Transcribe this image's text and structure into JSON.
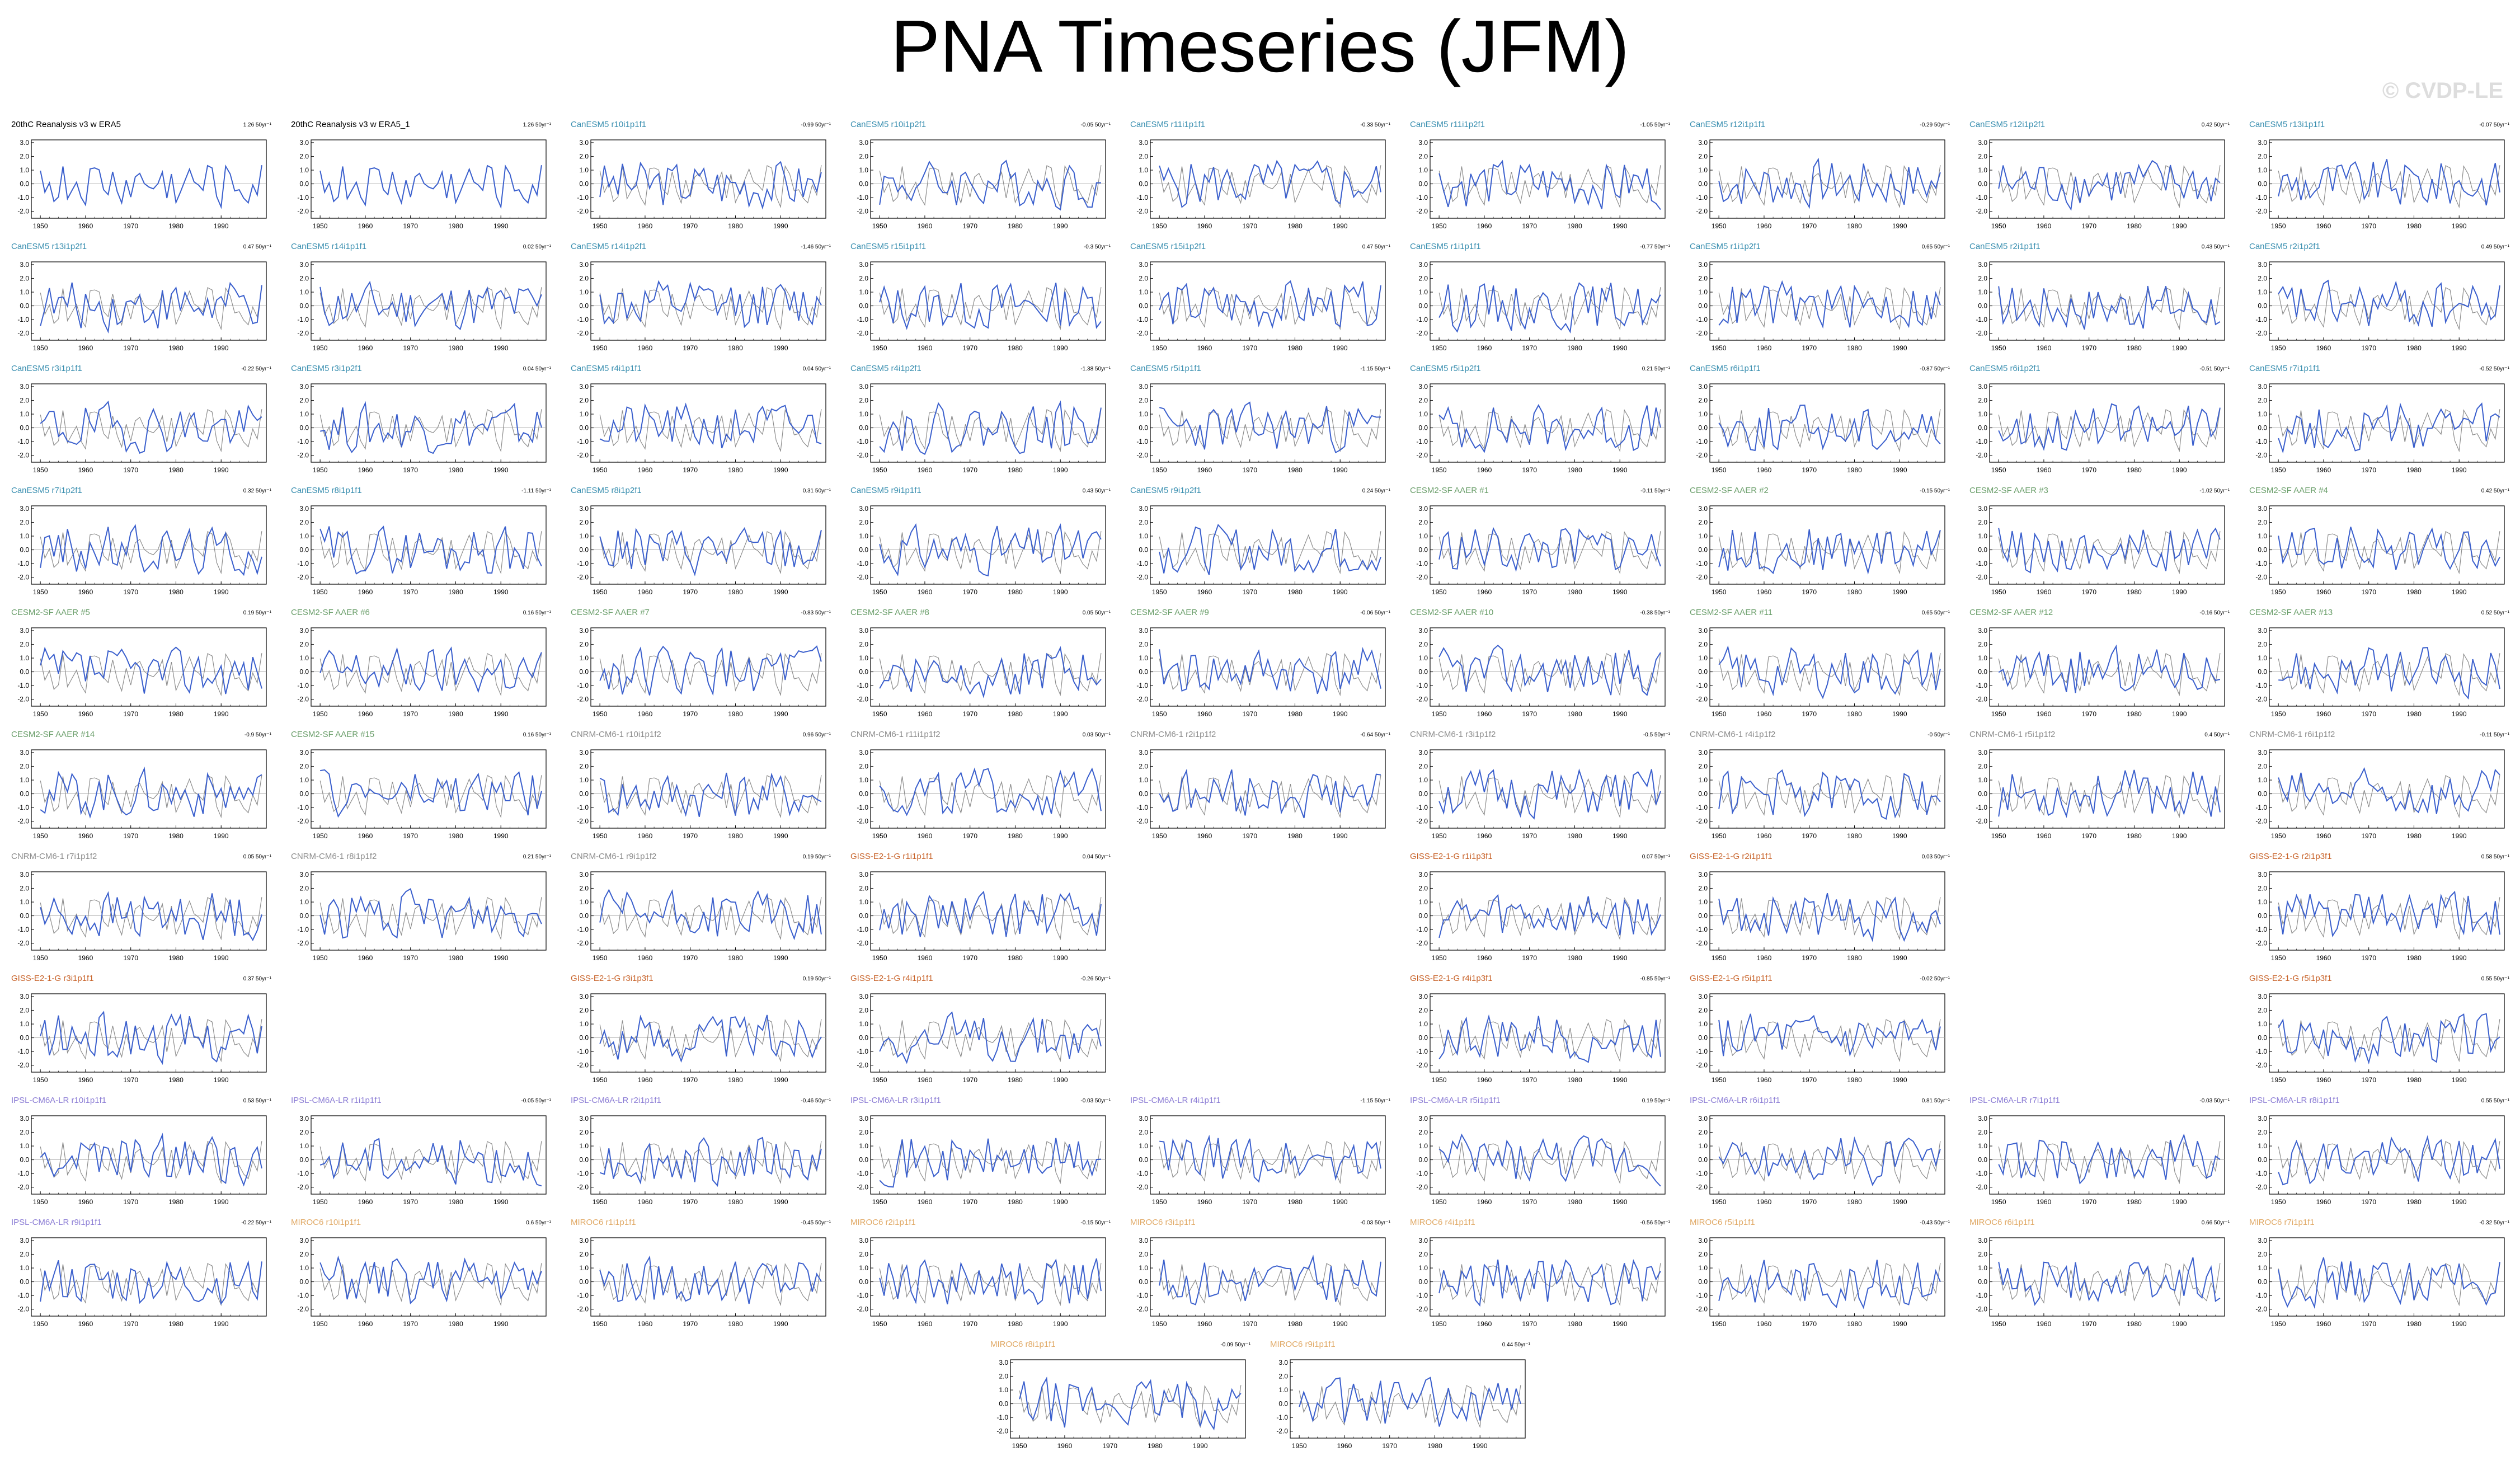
{
  "page": {
    "title": "PNA Timeseries (JFM)",
    "watermark": "© CVDP-LE"
  },
  "colors": {
    "obs": "#000000",
    "CanESM5": "#3a8fb0",
    "CESM2-SF AAER": "#6a9e6a",
    "CNRM-CM6-1": "#8c8c8c",
    "GISS-E2-1-G": "#c8632a",
    "IPSL-CM6A-LR": "#8a7bd4",
    "MIROC6": "#e0a864",
    "model_line": "#3a5fcd",
    "obs_line": "#8c8c8c"
  },
  "chart_data": {
    "type": "line",
    "ylim": [
      -2.5,
      3.2
    ],
    "xlim": [
      1948,
      2000
    ],
    "yticks": [
      "3.0",
      "2.0",
      "1.0",
      "0.0",
      "-1.0",
      "-2.0"
    ],
    "xticks": [
      "1950",
      "1960",
      "1970",
      "1980",
      "1990"
    ],
    "panels": [
      {
        "row": 0,
        "col": 0,
        "title": "20thC Reanalysis v3 w ERA5",
        "trend": "1.26 50yr⁻¹",
        "group": "obs",
        "seed": 1
      },
      {
        "row": 0,
        "col": 1,
        "title": "20thC Reanalysis v3 w ERA5_1",
        "trend": "1.26 50yr⁻¹",
        "group": "obs",
        "seed": 2
      },
      {
        "row": 0,
        "col": 2,
        "title": "CanESM5 r10i1p1f1",
        "trend": "-0.99 50yr⁻¹",
        "group": "CanESM5",
        "seed": 3
      },
      {
        "row": 0,
        "col": 3,
        "title": "CanESM5 r10i1p2f1",
        "trend": "-0.05 50yr⁻¹",
        "group": "CanESM5",
        "seed": 4
      },
      {
        "row": 0,
        "col": 4,
        "title": "CanESM5 r11i1p1f1",
        "trend": "-0.33 50yr⁻¹",
        "group": "CanESM5",
        "seed": 5
      },
      {
        "row": 0,
        "col": 5,
        "title": "CanESM5 r11i1p2f1",
        "trend": "-1.05 50yr⁻¹",
        "group": "CanESM5",
        "seed": 6
      },
      {
        "row": 0,
        "col": 6,
        "title": "CanESM5 r12i1p1f1",
        "trend": "-0.29 50yr⁻¹",
        "group": "CanESM5",
        "seed": 7
      },
      {
        "row": 0,
        "col": 7,
        "title": "CanESM5 r12i1p2f1",
        "trend": "0.42 50yr⁻¹",
        "group": "CanESM5",
        "seed": 8
      },
      {
        "row": 0,
        "col": 8,
        "title": "CanESM5 r13i1p1f1",
        "trend": "-0.07 50yr⁻¹",
        "group": "CanESM5",
        "seed": 9
      },
      {
        "row": 1,
        "col": 0,
        "title": "CanESM5 r13i1p2f1",
        "trend": "0.47 50yr⁻¹",
        "group": "CanESM5",
        "seed": 10
      },
      {
        "row": 1,
        "col": 1,
        "title": "CanESM5 r14i1p1f1",
        "trend": "0.02 50yr⁻¹",
        "group": "CanESM5",
        "seed": 11
      },
      {
        "row": 1,
        "col": 2,
        "title": "CanESM5 r14i1p2f1",
        "trend": "-1.46 50yr⁻¹",
        "group": "CanESM5",
        "seed": 12
      },
      {
        "row": 1,
        "col": 3,
        "title": "CanESM5 r15i1p1f1",
        "trend": "-0.3 50yr⁻¹",
        "group": "CanESM5",
        "seed": 13
      },
      {
        "row": 1,
        "col": 4,
        "title": "CanESM5 r15i1p2f1",
        "trend": "0.47 50yr⁻¹",
        "group": "CanESM5",
        "seed": 14
      },
      {
        "row": 1,
        "col": 5,
        "title": "CanESM5 r1i1p1f1",
        "trend": "-0.77 50yr⁻¹",
        "group": "CanESM5",
        "seed": 15
      },
      {
        "row": 1,
        "col": 6,
        "title": "CanESM5 r1i1p2f1",
        "trend": "0.65 50yr⁻¹",
        "group": "CanESM5",
        "seed": 16
      },
      {
        "row": 1,
        "col": 7,
        "title": "CanESM5 r2i1p1f1",
        "trend": "0.43 50yr⁻¹",
        "group": "CanESM5",
        "seed": 17
      },
      {
        "row": 1,
        "col": 8,
        "title": "CanESM5 r2i1p2f1",
        "trend": "0.49 50yr⁻¹",
        "group": "CanESM5",
        "seed": 18
      },
      {
        "row": 2,
        "col": 0,
        "title": "CanESM5 r3i1p1f1",
        "trend": "-0.22 50yr⁻¹",
        "group": "CanESM5",
        "seed": 19
      },
      {
        "row": 2,
        "col": 1,
        "title": "CanESM5 r3i1p2f1",
        "trend": "0.04 50yr⁻¹",
        "group": "CanESM5",
        "seed": 20
      },
      {
        "row": 2,
        "col": 2,
        "title": "CanESM5 r4i1p1f1",
        "trend": "0.04 50yr⁻¹",
        "group": "CanESM5",
        "seed": 21
      },
      {
        "row": 2,
        "col": 3,
        "title": "CanESM5 r4i1p2f1",
        "trend": "-1.38 50yr⁻¹",
        "group": "CanESM5",
        "seed": 22
      },
      {
        "row": 2,
        "col": 4,
        "title": "CanESM5 r5i1p1f1",
        "trend": "-1.15 50yr⁻¹",
        "group": "CanESM5",
        "seed": 23
      },
      {
        "row": 2,
        "col": 5,
        "title": "CanESM5 r5i1p2f1",
        "trend": "0.21 50yr⁻¹",
        "group": "CanESM5",
        "seed": 24
      },
      {
        "row": 2,
        "col": 6,
        "title": "CanESM5 r6i1p1f1",
        "trend": "-0.87 50yr⁻¹",
        "group": "CanESM5",
        "seed": 25
      },
      {
        "row": 2,
        "col": 7,
        "title": "CanESM5 r6i1p2f1",
        "trend": "-0.51 50yr⁻¹",
        "group": "CanESM5",
        "seed": 26
      },
      {
        "row": 2,
        "col": 8,
        "title": "CanESM5 r7i1p1f1",
        "trend": "-0.52 50yr⁻¹",
        "group": "CanESM5",
        "seed": 27
      },
      {
        "row": 3,
        "col": 0,
        "title": "CanESM5 r7i1p2f1",
        "trend": "0.32 50yr⁻¹",
        "group": "CanESM5",
        "seed": 28
      },
      {
        "row": 3,
        "col": 1,
        "title": "CanESM5 r8i1p1f1",
        "trend": "-1.11 50yr⁻¹",
        "group": "CanESM5",
        "seed": 29
      },
      {
        "row": 3,
        "col": 2,
        "title": "CanESM5 r8i1p2f1",
        "trend": "0.31 50yr⁻¹",
        "group": "CanESM5",
        "seed": 30
      },
      {
        "row": 3,
        "col": 3,
        "title": "CanESM5 r9i1p1f1",
        "trend": "0.43 50yr⁻¹",
        "group": "CanESM5",
        "seed": 31
      },
      {
        "row": 3,
        "col": 4,
        "title": "CanESM5 r9i1p2f1",
        "trend": "0.24 50yr⁻¹",
        "group": "CanESM5",
        "seed": 32
      },
      {
        "row": 3,
        "col": 5,
        "title": "CESM2-SF AAER #1",
        "trend": "-0.11 50yr⁻¹",
        "group": "CESM2-SF AAER",
        "seed": 33
      },
      {
        "row": 3,
        "col": 6,
        "title": "CESM2-SF AAER #2",
        "trend": "-0.15 50yr⁻¹",
        "group": "CESM2-SF AAER",
        "seed": 34
      },
      {
        "row": 3,
        "col": 7,
        "title": "CESM2-SF AAER #3",
        "trend": "-1.02 50yr⁻¹",
        "group": "CESM2-SF AAER",
        "seed": 35
      },
      {
        "row": 3,
        "col": 8,
        "title": "CESM2-SF AAER #4",
        "trend": "0.42 50yr⁻¹",
        "group": "CESM2-SF AAER",
        "seed": 36
      },
      {
        "row": 4,
        "col": 0,
        "title": "CESM2-SF AAER #5",
        "trend": "0.19 50yr⁻¹",
        "group": "CESM2-SF AAER",
        "seed": 37
      },
      {
        "row": 4,
        "col": 1,
        "title": "CESM2-SF AAER #6",
        "trend": "0.16 50yr⁻¹",
        "group": "CESM2-SF AAER",
        "seed": 38
      },
      {
        "row": 4,
        "col": 2,
        "title": "CESM2-SF AAER #7",
        "trend": "-0.83 50yr⁻¹",
        "group": "CESM2-SF AAER",
        "seed": 39
      },
      {
        "row": 4,
        "col": 3,
        "title": "CESM2-SF AAER #8",
        "trend": "0.05 50yr⁻¹",
        "group": "CESM2-SF AAER",
        "seed": 40
      },
      {
        "row": 4,
        "col": 4,
        "title": "CESM2-SF AAER #9",
        "trend": "-0.06 50yr⁻¹",
        "group": "CESM2-SF AAER",
        "seed": 41
      },
      {
        "row": 4,
        "col": 5,
        "title": "CESM2-SF AAER #10",
        "trend": "-0.38 50yr⁻¹",
        "group": "CESM2-SF AAER",
        "seed": 42
      },
      {
        "row": 4,
        "col": 6,
        "title": "CESM2-SF AAER #11",
        "trend": "0.65 50yr⁻¹",
        "group": "CESM2-SF AAER",
        "seed": 43
      },
      {
        "row": 4,
        "col": 7,
        "title": "CESM2-SF AAER #12",
        "trend": "-0.16 50yr⁻¹",
        "group": "CESM2-SF AAER",
        "seed": 44
      },
      {
        "row": 4,
        "col": 8,
        "title": "CESM2-SF AAER #13",
        "trend": "0.52 50yr⁻¹",
        "group": "CESM2-SF AAER",
        "seed": 45
      },
      {
        "row": 5,
        "col": 0,
        "title": "CESM2-SF AAER #14",
        "trend": "-0.9 50yr⁻¹",
        "group": "CESM2-SF AAER",
        "seed": 46
      },
      {
        "row": 5,
        "col": 1,
        "title": "CESM2-SF AAER #15",
        "trend": "0.16 50yr⁻¹",
        "group": "CESM2-SF AAER",
        "seed": 47
      },
      {
        "row": 5,
        "col": 2,
        "title": "CNRM-CM6-1 r10i1p1f2",
        "trend": "0.96 50yr⁻¹",
        "group": "CNRM-CM6-1",
        "seed": 48
      },
      {
        "row": 5,
        "col": 3,
        "title": "CNRM-CM6-1 r11i1p1f2",
        "trend": "0.03 50yr⁻¹",
        "group": "CNRM-CM6-1",
        "seed": 49
      },
      {
        "row": 5,
        "col": 4,
        "title": "CNRM-CM6-1 r2i1p1f2",
        "trend": "-0.64 50yr⁻¹",
        "group": "CNRM-CM6-1",
        "seed": 50
      },
      {
        "row": 5,
        "col": 5,
        "title": "CNRM-CM6-1 r3i1p1f2",
        "trend": "-0.5 50yr⁻¹",
        "group": "CNRM-CM6-1",
        "seed": 51
      },
      {
        "row": 5,
        "col": 6,
        "title": "CNRM-CM6-1 r4i1p1f2",
        "trend": "-0 50yr⁻¹",
        "group": "CNRM-CM6-1",
        "seed": 52
      },
      {
        "row": 5,
        "col": 7,
        "title": "CNRM-CM6-1 r5i1p1f2",
        "trend": "0.4 50yr⁻¹",
        "group": "CNRM-CM6-1",
        "seed": 53
      },
      {
        "row": 5,
        "col": 8,
        "title": "CNRM-CM6-1 r6i1p1f2",
        "trend": "-0.11 50yr⁻¹",
        "group": "CNRM-CM6-1",
        "seed": 54
      },
      {
        "row": 6,
        "col": 0,
        "title": "CNRM-CM6-1 r7i1p1f2",
        "trend": "0.05 50yr⁻¹",
        "group": "CNRM-CM6-1",
        "seed": 55
      },
      {
        "row": 6,
        "col": 1,
        "title": "CNRM-CM6-1 r8i1p1f2",
        "trend": "0.21 50yr⁻¹",
        "group": "CNRM-CM6-1",
        "seed": 56
      },
      {
        "row": 6,
        "col": 2,
        "title": "CNRM-CM6-1 r9i1p1f2",
        "trend": "0.19 50yr⁻¹",
        "group": "CNRM-CM6-1",
        "seed": 57
      },
      {
        "row": 6,
        "col": 3,
        "title": "GISS-E2-1-G r1i1p1f1",
        "trend": "0.04 50yr⁻¹",
        "group": "GISS-E2-1-G",
        "seed": 58
      },
      {
        "row": 6,
        "col": 5,
        "title": "GISS-E2-1-G r1i1p3f1",
        "trend": "0.07 50yr⁻¹",
        "group": "GISS-E2-1-G",
        "seed": 59
      },
      {
        "row": 6,
        "col": 6,
        "title": "GISS-E2-1-G r2i1p1f1",
        "trend": "0.03 50yr⁻¹",
        "group": "GISS-E2-1-G",
        "seed": 60
      },
      {
        "row": 6,
        "col": 8,
        "title": "GISS-E2-1-G r2i1p3f1",
        "trend": "0.58 50yr⁻¹",
        "group": "GISS-E2-1-G",
        "seed": 61
      },
      {
        "row": 7,
        "col": 0,
        "title": "GISS-E2-1-G r3i1p1f1",
        "trend": "0.37 50yr⁻¹",
        "group": "GISS-E2-1-G",
        "seed": 62
      },
      {
        "row": 7,
        "col": 2,
        "title": "GISS-E2-1-G r3i1p3f1",
        "trend": "0.19 50yr⁻¹",
        "group": "GISS-E2-1-G",
        "seed": 63
      },
      {
        "row": 7,
        "col": 3,
        "title": "GISS-E2-1-G r4i1p1f1",
        "trend": "-0.26 50yr⁻¹",
        "group": "GISS-E2-1-G",
        "seed": 64
      },
      {
        "row": 7,
        "col": 5,
        "title": "GISS-E2-1-G r4i1p3f1",
        "trend": "-0.85 50yr⁻¹",
        "group": "GISS-E2-1-G",
        "seed": 65
      },
      {
        "row": 7,
        "col": 6,
        "title": "GISS-E2-1-G r5i1p1f1",
        "trend": "-0.02 50yr⁻¹",
        "group": "GISS-E2-1-G",
        "seed": 66
      },
      {
        "row": 7,
        "col": 8,
        "title": "GISS-E2-1-G r5i1p3f1",
        "trend": "0.55 50yr⁻¹",
        "group": "GISS-E2-1-G",
        "seed": 67
      },
      {
        "row": 8,
        "col": 0,
        "title": "IPSL-CM6A-LR r10i1p1f1",
        "trend": "0.53 50yr⁻¹",
        "group": "IPSL-CM6A-LR",
        "seed": 68
      },
      {
        "row": 8,
        "col": 1,
        "title": "IPSL-CM6A-LR r1i1p1f1",
        "trend": "-0.05 50yr⁻¹",
        "group": "IPSL-CM6A-LR",
        "seed": 69
      },
      {
        "row": 8,
        "col": 2,
        "title": "IPSL-CM6A-LR r2i1p1f1",
        "trend": "-0.46 50yr⁻¹",
        "group": "IPSL-CM6A-LR",
        "seed": 70
      },
      {
        "row": 8,
        "col": 3,
        "title": "IPSL-CM6A-LR r3i1p1f1",
        "trend": "-0.03 50yr⁻¹",
        "group": "IPSL-CM6A-LR",
        "seed": 71
      },
      {
        "row": 8,
        "col": 4,
        "title": "IPSL-CM6A-LR r4i1p1f1",
        "trend": "-1.15 50yr⁻¹",
        "group": "IPSL-CM6A-LR",
        "seed": 72
      },
      {
        "row": 8,
        "col": 5,
        "title": "IPSL-CM6A-LR r5i1p1f1",
        "trend": "0.19 50yr⁻¹",
        "group": "IPSL-CM6A-LR",
        "seed": 73
      },
      {
        "row": 8,
        "col": 6,
        "title": "IPSL-CM6A-LR r6i1p1f1",
        "trend": "0.81 50yr⁻¹",
        "group": "IPSL-CM6A-LR",
        "seed": 74
      },
      {
        "row": 8,
        "col": 7,
        "title": "IPSL-CM6A-LR r7i1p1f1",
        "trend": "-0.03 50yr⁻¹",
        "group": "IPSL-CM6A-LR",
        "seed": 75
      },
      {
        "row": 8,
        "col": 8,
        "title": "IPSL-CM6A-LR r8i1p1f1",
        "trend": "0.55 50yr⁻¹",
        "group": "IPSL-CM6A-LR",
        "seed": 76
      },
      {
        "row": 9,
        "col": 0,
        "title": "IPSL-CM6A-LR r9i1p1f1",
        "trend": "-0.22 50yr⁻¹",
        "group": "IPSL-CM6A-LR",
        "seed": 77
      },
      {
        "row": 9,
        "col": 1,
        "title": "MIROC6 r10i1p1f1",
        "trend": "0.6 50yr⁻¹",
        "group": "MIROC6",
        "seed": 78
      },
      {
        "row": 9,
        "col": 2,
        "title": "MIROC6 r1i1p1f1",
        "trend": "-0.45 50yr⁻¹",
        "group": "MIROC6",
        "seed": 79
      },
      {
        "row": 9,
        "col": 3,
        "title": "MIROC6 r2i1p1f1",
        "trend": "-0.15 50yr⁻¹",
        "group": "MIROC6",
        "seed": 80
      },
      {
        "row": 9,
        "col": 4,
        "title": "MIROC6 r3i1p1f1",
        "trend": "-0.03 50yr⁻¹",
        "group": "MIROC6",
        "seed": 81
      },
      {
        "row": 9,
        "col": 5,
        "title": "MIROC6 r4i1p1f1",
        "trend": "-0.56 50yr⁻¹",
        "group": "MIROC6",
        "seed": 82
      },
      {
        "row": 9,
        "col": 6,
        "title": "MIROC6 r5i1p1f1",
        "trend": "-0.43 50yr⁻¹",
        "group": "MIROC6",
        "seed": 83
      },
      {
        "row": 9,
        "col": 7,
        "title": "MIROC6 r6i1p1f1",
        "trend": "0.66 50yr⁻¹",
        "group": "MIROC6",
        "seed": 84
      },
      {
        "row": 9,
        "col": 8,
        "title": "MIROC6 r7i1p1f1",
        "trend": "-0.32 50yr⁻¹",
        "group": "MIROC6",
        "seed": 85
      },
      {
        "row": 10,
        "col": 3.5,
        "title": "MIROC6 r8i1p1f1",
        "trend": "-0.09 50yr⁻¹",
        "group": "MIROC6",
        "seed": 86
      },
      {
        "row": 10,
        "col": 4.5,
        "title": "MIROC6 r9i1p1f1",
        "trend": "0.44 50yr⁻¹",
        "group": "MIROC6",
        "seed": 87
      }
    ]
  }
}
